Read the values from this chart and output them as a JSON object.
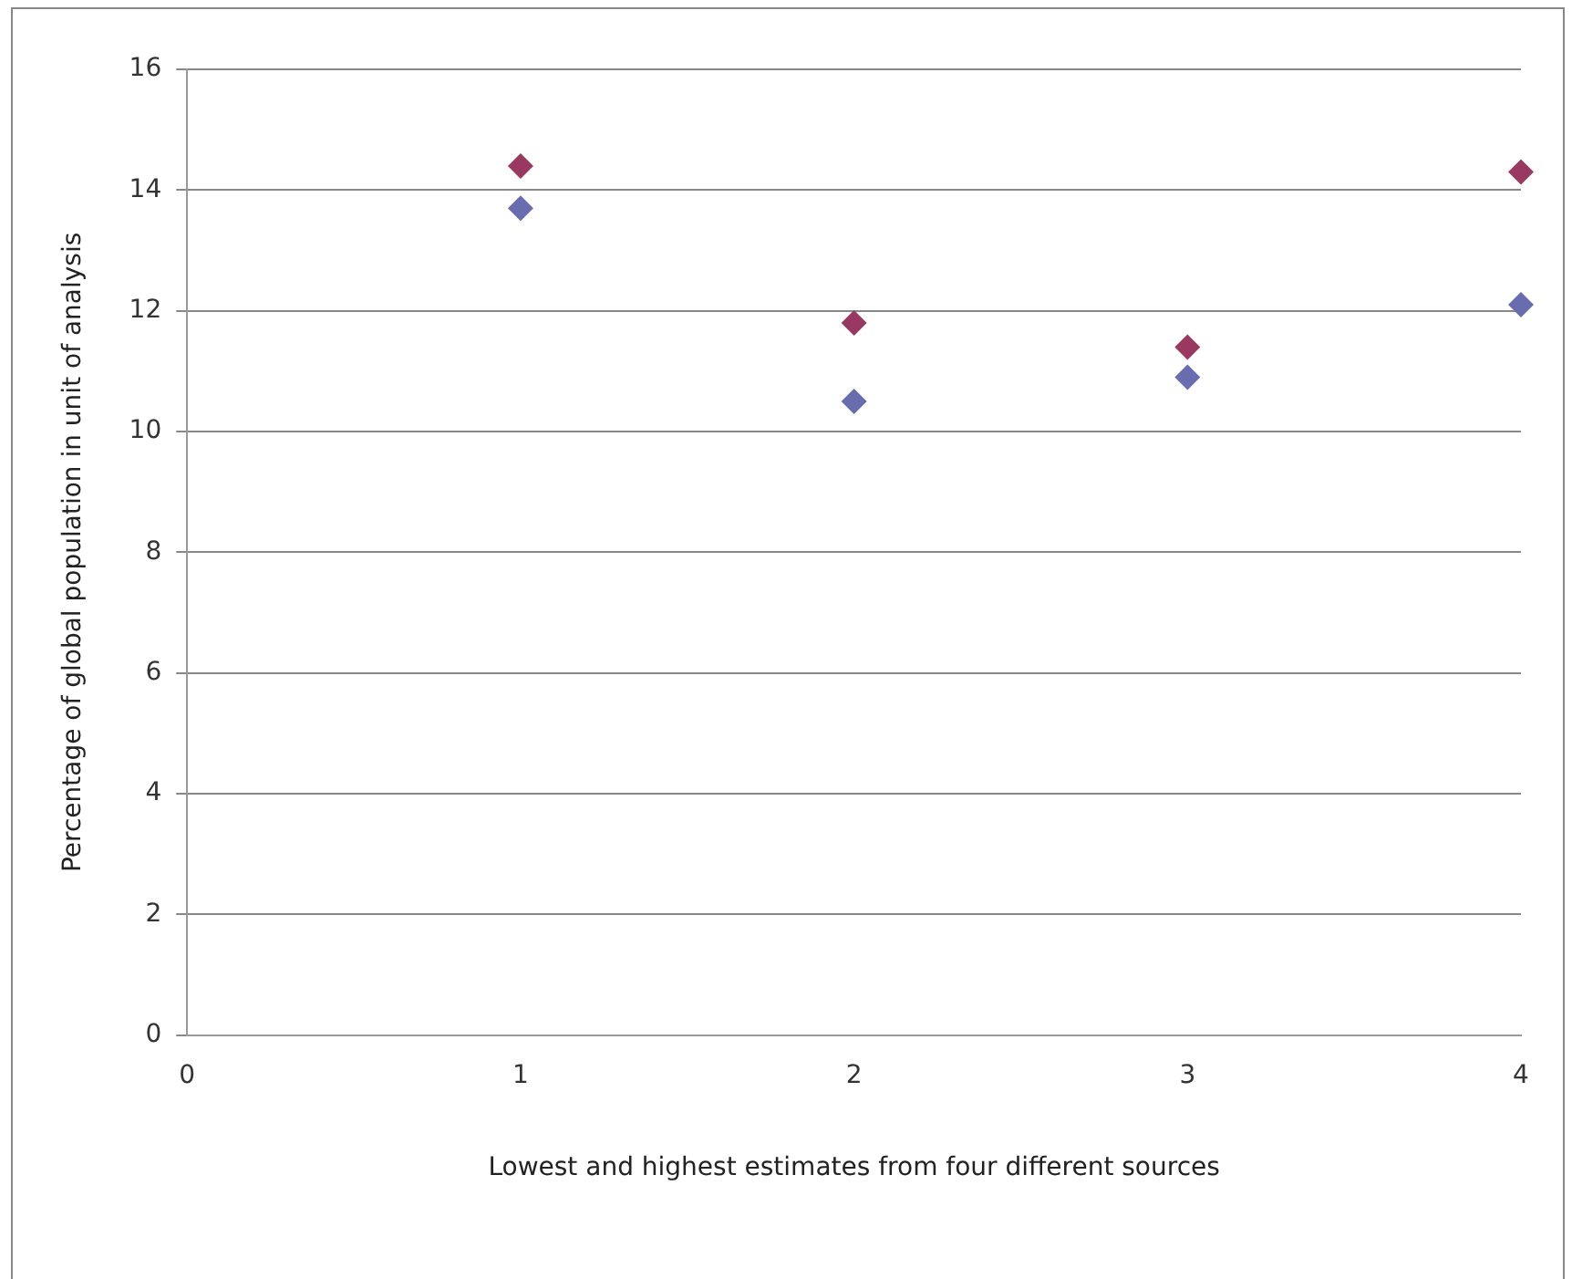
{
  "chart_data": {
    "type": "scatter",
    "xlabel": "Lowest and highest estimates from four different sources",
    "ylabel": "Percentage of global population in unit of analysis",
    "x": [
      1,
      2,
      3,
      4
    ],
    "series": [
      {
        "color": "#6a6cb0",
        "values": [
          13.7,
          10.5,
          10.9,
          12.1
        ]
      },
      {
        "color": "#993860",
        "values": [
          14.4,
          11.8,
          11.4,
          14.3
        ]
      }
    ],
    "xlim": [
      0,
      4
    ],
    "xticks": [
      0,
      1,
      2,
      3,
      4
    ],
    "ylim": [
      0,
      16
    ],
    "yticks": [
      0,
      2,
      4,
      6,
      8,
      10,
      12,
      14,
      16
    ],
    "grid": "y",
    "legend": false,
    "marker": "diamond"
  }
}
